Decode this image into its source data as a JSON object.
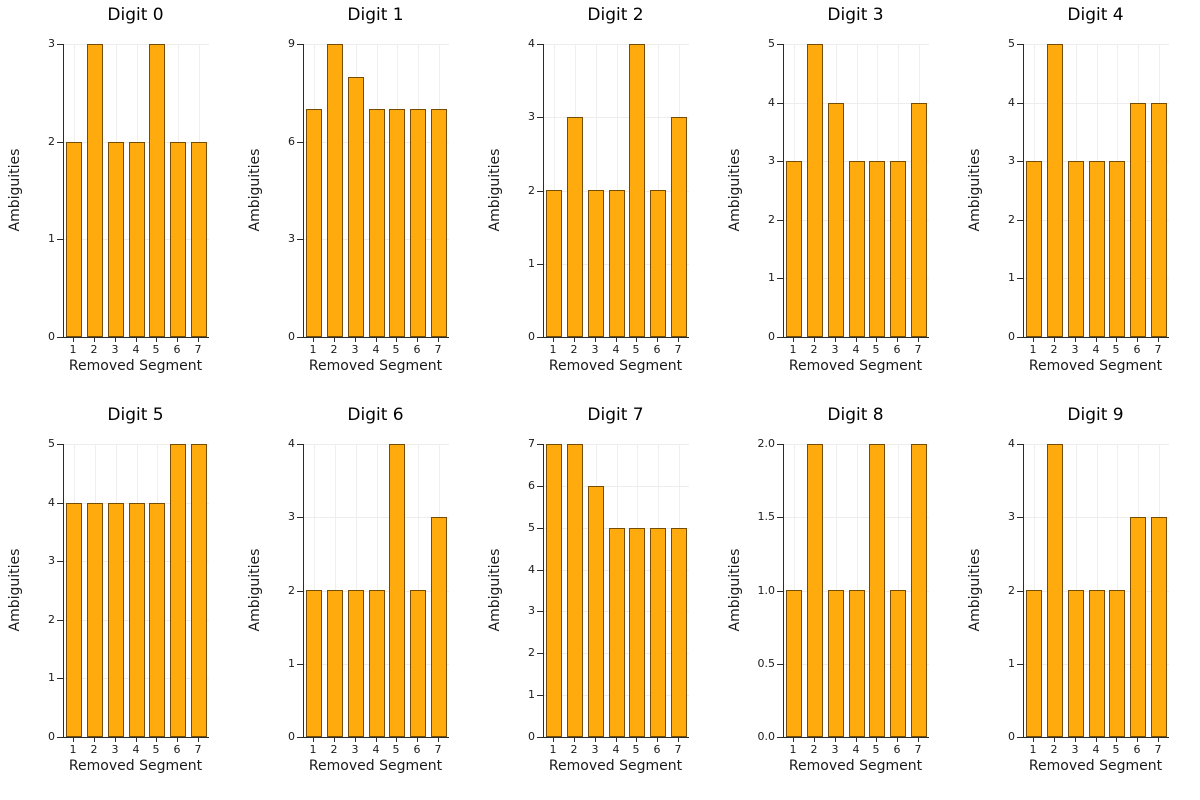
{
  "colors": {
    "bar_fill": "#ffab0e",
    "bar_stroke": "rgba(0,0,0,0.55)",
    "axis": "#2b2b2b",
    "grid": "#ededed",
    "background": "#ffffff"
  },
  "chart_data": [
    {
      "type": "bar",
      "title": "Digit 0",
      "xlabel": "Removed Segment",
      "ylabel": "Ambiguities",
      "categories": [
        "1",
        "2",
        "3",
        "4",
        "5",
        "6",
        "7"
      ],
      "values": [
        2,
        3,
        2,
        2,
        3,
        2,
        2
      ],
      "ylim": [
        0,
        3
      ],
      "yticks": [
        "0",
        "1",
        "2",
        "3"
      ],
      "grid": true,
      "legend": "none"
    },
    {
      "type": "bar",
      "title": "Digit 1",
      "xlabel": "Removed Segment",
      "ylabel": "Ambiguities",
      "categories": [
        "1",
        "2",
        "3",
        "4",
        "5",
        "6",
        "7"
      ],
      "values": [
        7,
        9,
        8,
        7,
        7,
        7,
        7
      ],
      "ylim": [
        0,
        9
      ],
      "yticks": [
        "0",
        "3",
        "6",
        "9"
      ],
      "grid": true,
      "legend": "none"
    },
    {
      "type": "bar",
      "title": "Digit 2",
      "xlabel": "Removed Segment",
      "ylabel": "Ambiguities",
      "categories": [
        "1",
        "2",
        "3",
        "4",
        "5",
        "6",
        "7"
      ],
      "values": [
        2,
        3,
        2,
        2,
        4,
        2,
        3
      ],
      "ylim": [
        0,
        4
      ],
      "yticks": [
        "0",
        "1",
        "2",
        "3",
        "4"
      ],
      "grid": true,
      "legend": "none"
    },
    {
      "type": "bar",
      "title": "Digit 3",
      "xlabel": "Removed Segment",
      "ylabel": "Ambiguities",
      "categories": [
        "1",
        "2",
        "3",
        "4",
        "5",
        "6",
        "7"
      ],
      "values": [
        3,
        5,
        4,
        3,
        3,
        3,
        4
      ],
      "ylim": [
        0,
        5
      ],
      "yticks": [
        "0",
        "1",
        "2",
        "3",
        "4",
        "5"
      ],
      "grid": true,
      "legend": "none"
    },
    {
      "type": "bar",
      "title": "Digit 4",
      "xlabel": "Removed Segment",
      "ylabel": "Ambiguities",
      "categories": [
        "1",
        "2",
        "3",
        "4",
        "5",
        "6",
        "7"
      ],
      "values": [
        3,
        5,
        3,
        3,
        3,
        4,
        4
      ],
      "ylim": [
        0,
        5
      ],
      "yticks": [
        "0",
        "1",
        "2",
        "3",
        "4",
        "5"
      ],
      "grid": true,
      "legend": "none"
    },
    {
      "type": "bar",
      "title": "Digit 5",
      "xlabel": "Removed Segment",
      "ylabel": "Ambiguities",
      "categories": [
        "1",
        "2",
        "3",
        "4",
        "5",
        "6",
        "7"
      ],
      "values": [
        4,
        4,
        4,
        4,
        4,
        5,
        5
      ],
      "ylim": [
        0,
        5
      ],
      "yticks": [
        "0",
        "1",
        "2",
        "3",
        "4",
        "5"
      ],
      "grid": true,
      "legend": "none"
    },
    {
      "type": "bar",
      "title": "Digit 6",
      "xlabel": "Removed Segment",
      "ylabel": "Ambiguities",
      "categories": [
        "1",
        "2",
        "3",
        "4",
        "5",
        "6",
        "7"
      ],
      "values": [
        2,
        2,
        2,
        2,
        4,
        2,
        3
      ],
      "ylim": [
        0,
        4
      ],
      "yticks": [
        "0",
        "1",
        "2",
        "3",
        "4"
      ],
      "grid": true,
      "legend": "none"
    },
    {
      "type": "bar",
      "title": "Digit 7",
      "xlabel": "Removed Segment",
      "ylabel": "Ambiguities",
      "categories": [
        "1",
        "2",
        "3",
        "4",
        "5",
        "6",
        "7"
      ],
      "values": [
        7,
        7,
        6,
        5,
        5,
        5,
        5
      ],
      "ylim": [
        0,
        7
      ],
      "yticks": [
        "0",
        "1",
        "2",
        "3",
        "4",
        "5",
        "6",
        "7"
      ],
      "grid": true,
      "legend": "none"
    },
    {
      "type": "bar",
      "title": "Digit 8",
      "xlabel": "Removed Segment",
      "ylabel": "Ambiguities",
      "categories": [
        "1",
        "2",
        "3",
        "4",
        "5",
        "6",
        "7"
      ],
      "values": [
        1,
        2,
        1,
        1,
        2,
        1,
        2
      ],
      "ylim": [
        0,
        2
      ],
      "yticks": [
        "0.0",
        "0.5",
        "1.0",
        "1.5",
        "2.0"
      ],
      "grid": true,
      "legend": "none"
    },
    {
      "type": "bar",
      "title": "Digit 9",
      "xlabel": "Removed Segment",
      "ylabel": "Ambiguities",
      "categories": [
        "1",
        "2",
        "3",
        "4",
        "5",
        "6",
        "7"
      ],
      "values": [
        2,
        4,
        2,
        2,
        2,
        3,
        3
      ],
      "ylim": [
        0,
        4
      ],
      "yticks": [
        "0",
        "1",
        "2",
        "3",
        "4"
      ],
      "grid": true,
      "legend": "none"
    }
  ]
}
